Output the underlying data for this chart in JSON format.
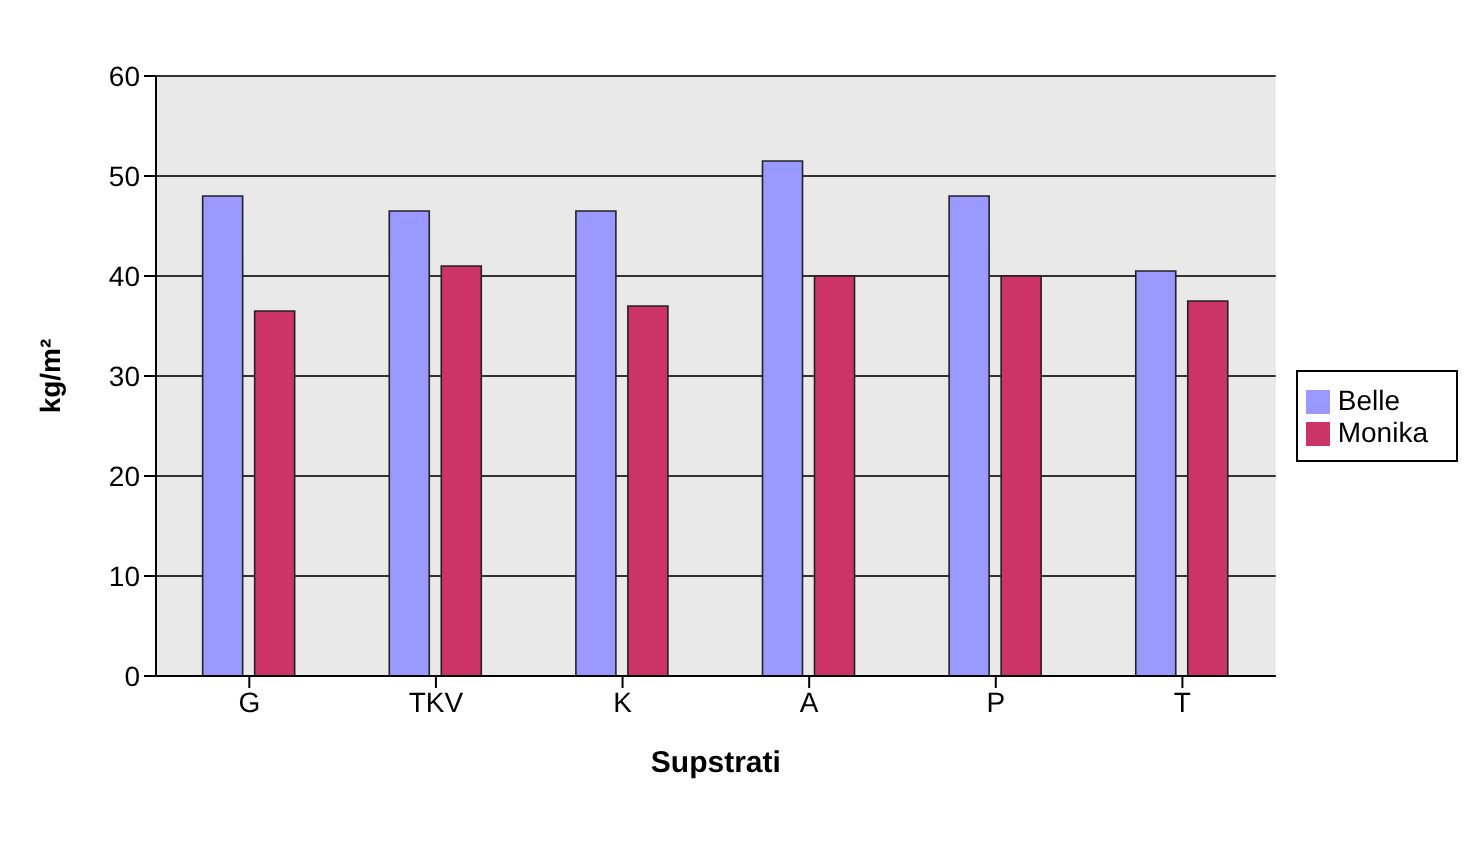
{
  "chart_data": {
    "type": "bar",
    "xlabel": "Supstrati",
    "ylabel": "kg/m²",
    "categories": [
      "G",
      "TKV",
      "K",
      "A",
      "P",
      "T"
    ],
    "series": [
      {
        "name": "Belle",
        "color": "#9999ff",
        "values": [
          48,
          46.5,
          46.5,
          51.5,
          48,
          40.5
        ]
      },
      {
        "name": "Monika",
        "color": "#cc3366",
        "values": [
          36.5,
          41,
          37,
          40,
          40,
          37.5
        ]
      }
    ],
    "ylim": [
      0,
      60
    ],
    "yticks": [
      0,
      10,
      20,
      30,
      40,
      50,
      60
    ],
    "grid": "y",
    "legend": "right"
  }
}
